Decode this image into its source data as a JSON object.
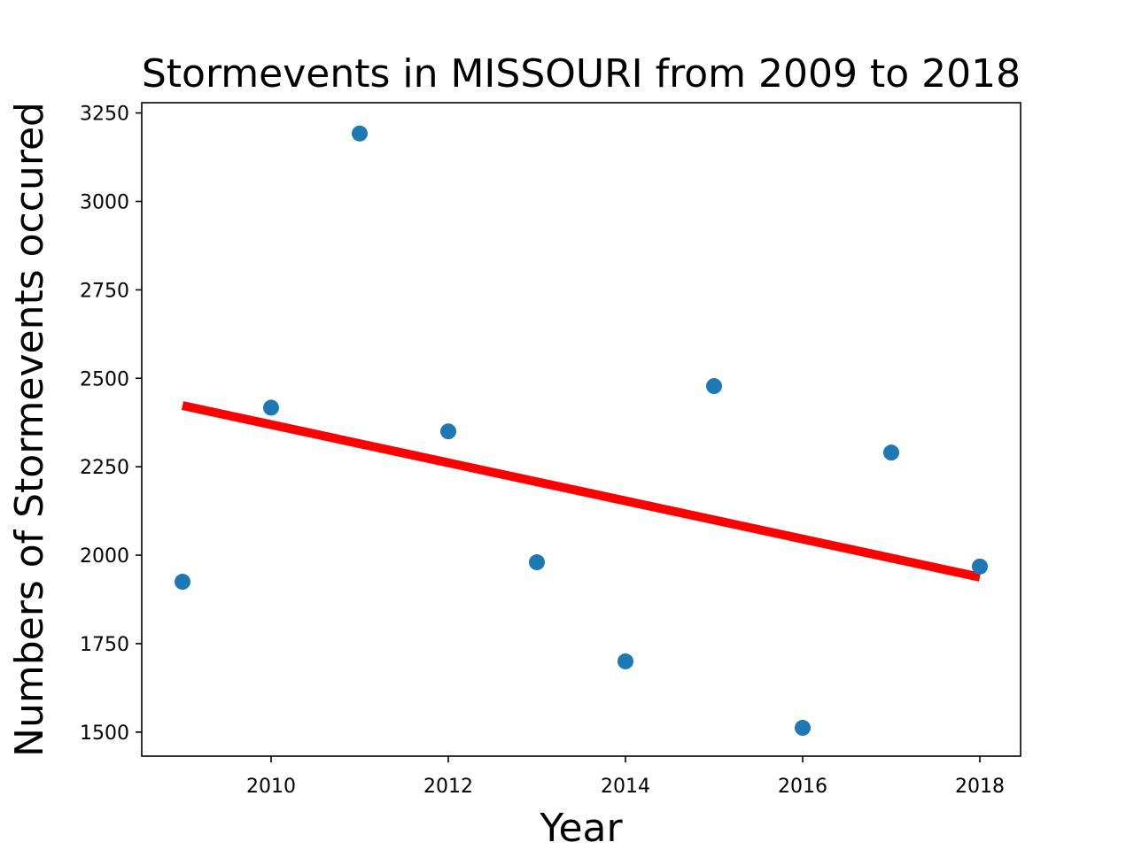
{
  "chart_data": {
    "type": "scatter",
    "title": "Stormevents in MISSOURI from 2009 to 2018",
    "xlabel": "Year",
    "ylabel": "Numbers of Stormevents occured",
    "xlim": [
      2008.54,
      2018.46
    ],
    "ylim": [
      1432,
      3279
    ],
    "xticks": [
      2010,
      2012,
      2014,
      2016,
      2018
    ],
    "yticks": [
      1500,
      1750,
      2000,
      2250,
      2500,
      2750,
      3000,
      3250
    ],
    "grid": false,
    "series": [
      {
        "kind": "scatter",
        "color": "#1f77b4",
        "points": [
          {
            "x": 2009,
            "y": 1925
          },
          {
            "x": 2010,
            "y": 2417
          },
          {
            "x": 2011,
            "y": 3192
          },
          {
            "x": 2012,
            "y": 2350
          },
          {
            "x": 2013,
            "y": 1980
          },
          {
            "x": 2014,
            "y": 1700
          },
          {
            "x": 2015,
            "y": 2478
          },
          {
            "x": 2016,
            "y": 1512
          },
          {
            "x": 2017,
            "y": 2290
          },
          {
            "x": 2018,
            "y": 1968
          }
        ]
      },
      {
        "kind": "trendline",
        "color": "#ff0000",
        "points": [
          {
            "x": 2009,
            "y": 2423
          },
          {
            "x": 2018,
            "y": 1938
          }
        ]
      }
    ]
  }
}
